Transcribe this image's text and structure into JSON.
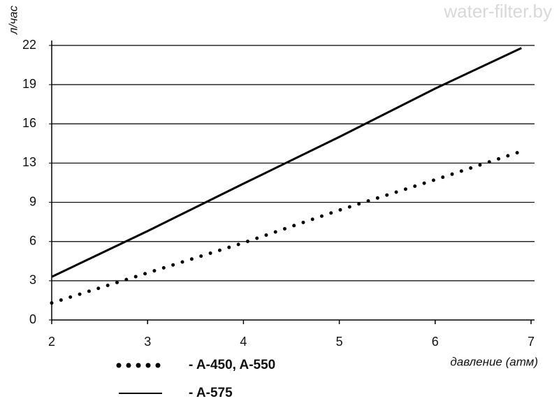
{
  "chart_data": {
    "type": "line",
    "watermark": "water-filter.by",
    "y_label": "л/час",
    "x_label": "давление (атм)",
    "x": [
      2,
      3,
      4,
      5,
      6,
      6.9
    ],
    "series": [
      {
        "name": "- A-450, A-550",
        "color": "#000000",
        "style": "dotted",
        "values": [
          1.3,
          3.6,
          5.9,
          8.4,
          11.3,
          13.9
        ]
      },
      {
        "name": "- A-575",
        "color": "#000000",
        "style": "solid",
        "values": [
          3.3,
          6.8,
          10.9,
          15.0,
          18.7,
          21.8
        ]
      }
    ],
    "xlim": [
      2,
      7
    ],
    "xticks": [
      2,
      3,
      4,
      5,
      6,
      7
    ],
    "ylim": [
      0,
      22
    ],
    "yticks": [
      0,
      3,
      6,
      9,
      13,
      16,
      19,
      22
    ],
    "grid": true
  }
}
